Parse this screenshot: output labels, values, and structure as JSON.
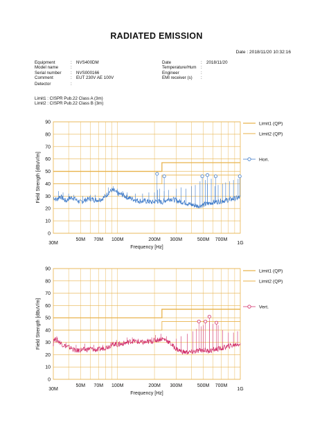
{
  "report": {
    "title": "RADIATED EMISSION",
    "date_line": "Date : 2018/11/20 10:32:16",
    "left_fields": [
      {
        "label": "Equipment",
        "value": "NVS400DM"
      },
      {
        "label": "Model name",
        "value": ""
      },
      {
        "label": "Serial number",
        "value": "NVS000166"
      },
      {
        "label": "Comment",
        "value": "EUT 230V AE 100V"
      }
    ],
    "right_fields": [
      {
        "label": "Date",
        "value": "2018/11/20"
      },
      {
        "label": "Temperature/Hum",
        "value": ""
      },
      {
        "label": "Engineer",
        "value": ""
      },
      {
        "label": "EMI receiver (s)",
        "value": ""
      }
    ],
    "detector": {
      "label": "Detector",
      "value": ""
    },
    "limit_lines": [
      "Limit1 : CISPR Pub.22 Class A (3m)",
      "Limit2 : CISPR Pub.22 Class B (3m)"
    ]
  },
  "colors": {
    "grid": "#e8b24a",
    "limit": "#e8b24a",
    "hori": "#3a78c8",
    "vert": "#d02a66"
  },
  "chart_data": [
    {
      "type": "line",
      "name": "hori",
      "xlabel": "Frequency [Hz]",
      "ylabel": "Field Strength [dBuV/m]",
      "x_scale": "log",
      "xlim": [
        30,
        1000
      ],
      "ylim": [
        0,
        90
      ],
      "x_unit": "MHz",
      "x_ticks": [
        {
          "value": 30,
          "label": "30M"
        },
        {
          "value": 50,
          "label": "50M"
        },
        {
          "value": 70,
          "label": "70M"
        },
        {
          "value": 100,
          "label": "100M"
        },
        {
          "value": 200,
          "label": "200M"
        },
        {
          "value": 300,
          "label": "300M"
        },
        {
          "value": 500,
          "label": "500M"
        },
        {
          "value": 700,
          "label": "700M"
        },
        {
          "value": 1000,
          "label": "1G"
        }
      ],
      "y_ticks": [
        0,
        10,
        20,
        30,
        40,
        50,
        60,
        70,
        80,
        90
      ],
      "legend": [
        {
          "label": "Limit1 (QP)",
          "kind": "limit"
        },
        {
          "label": "Limit2 (QP)",
          "kind": "limit"
        },
        {
          "label": "Hori.",
          "kind": "series"
        }
      ],
      "limits": [
        {
          "name": "Limit1 (QP)",
          "steps": [
            {
              "from": 30,
              "to": 230,
              "value": 50
            },
            {
              "from": 230,
              "to": 1000,
              "value": 57
            }
          ]
        },
        {
          "name": "Limit2 (QP)",
          "steps": [
            {
              "from": 30,
              "to": 230,
              "value": 40
            },
            {
              "from": 230,
              "to": 1000,
              "value": 47
            }
          ]
        }
      ],
      "series": [
        {
          "name": "Hori.",
          "baseline": [
            [
              30,
              29
            ],
            [
              32,
              27
            ],
            [
              34,
              30
            ],
            [
              36,
              28
            ],
            [
              38,
              26
            ],
            [
              40,
              28
            ],
            [
              43,
              29
            ],
            [
              46,
              27
            ],
            [
              50,
              25
            ],
            [
              55,
              27
            ],
            [
              60,
              28
            ],
            [
              65,
              27
            ],
            [
              70,
              27
            ],
            [
              75,
              28
            ],
            [
              80,
              30
            ],
            [
              85,
              33
            ],
            [
              90,
              35
            ],
            [
              95,
              34
            ],
            [
              100,
              32
            ],
            [
              110,
              31
            ],
            [
              120,
              29
            ],
            [
              130,
              28
            ],
            [
              140,
              27
            ],
            [
              150,
              26
            ],
            [
              170,
              26
            ],
            [
              190,
              25
            ],
            [
              210,
              26
            ],
            [
              230,
              25
            ],
            [
              250,
              27
            ],
            [
              270,
              28
            ],
            [
              290,
              27
            ],
            [
              310,
              26
            ],
            [
              350,
              25
            ],
            [
              400,
              23
            ],
            [
              450,
              22
            ],
            [
              500,
              23
            ],
            [
              550,
              24
            ],
            [
              600,
              25
            ],
            [
              700,
              26
            ],
            [
              800,
              27
            ],
            [
              900,
              28
            ],
            [
              1000,
              29
            ]
          ],
          "spikes": [
            [
              33,
              34
            ],
            [
              36,
              33
            ],
            [
              40,
              32
            ],
            [
              44,
              31
            ],
            [
              52,
              30
            ],
            [
              60,
              31
            ],
            [
              66,
              31
            ],
            [
              84,
              37
            ],
            [
              92,
              38
            ],
            [
              100,
              36
            ],
            [
              110,
              34
            ],
            [
              120,
              33
            ],
            [
              140,
              32
            ],
            [
              160,
              32
            ],
            [
              180,
              33
            ],
            [
              200,
              33
            ],
            [
              212,
              35
            ],
            [
              220,
              36
            ],
            [
              240,
              34
            ],
            [
              260,
              35
            ],
            [
              300,
              36
            ],
            [
              330,
              37
            ],
            [
              360,
              36
            ],
            [
              400,
              38
            ],
            [
              430,
              39
            ],
            [
              470,
              42
            ],
            [
              520,
              43
            ],
            [
              540,
              40
            ],
            [
              580,
              44
            ],
            [
              620,
              38
            ],
            [
              660,
              39
            ],
            [
              720,
              40
            ],
            [
              760,
              41
            ],
            [
              820,
              42
            ],
            [
              880,
              43
            ],
            [
              960,
              44
            ]
          ],
          "markers": [
            [
              210,
              48
            ],
            [
              240,
              46
            ],
            [
              490,
              46
            ],
            [
              540,
              47
            ],
            [
              630,
              46
            ],
            [
              990,
              46
            ]
          ]
        }
      ]
    },
    {
      "type": "line",
      "name": "vert",
      "xlabel": "Frequency [Hz]",
      "ylabel": "Field Strength [dBuV/m]",
      "x_scale": "log",
      "xlim": [
        30,
        1000
      ],
      "ylim": [
        0,
        90
      ],
      "x_unit": "MHz",
      "x_ticks": [
        {
          "value": 30,
          "label": "30M"
        },
        {
          "value": 50,
          "label": "50M"
        },
        {
          "value": 70,
          "label": "70M"
        },
        {
          "value": 100,
          "label": "100M"
        },
        {
          "value": 200,
          "label": "200M"
        },
        {
          "value": 300,
          "label": "300M"
        },
        {
          "value": 500,
          "label": "500M"
        },
        {
          "value": 700,
          "label": "700M"
        },
        {
          "value": 1000,
          "label": "1G"
        }
      ],
      "y_ticks": [
        0,
        10,
        20,
        30,
        40,
        50,
        60,
        70,
        80,
        90
      ],
      "legend": [
        {
          "label": "Limit1 (QP)",
          "kind": "limit"
        },
        {
          "label": "Limit2 (QP)",
          "kind": "limit"
        },
        {
          "label": "Vert.",
          "kind": "series"
        }
      ],
      "limits": [
        {
          "name": "Limit1 (QP)",
          "steps": [
            {
              "from": 30,
              "to": 230,
              "value": 50
            },
            {
              "from": 230,
              "to": 1000,
              "value": 57
            }
          ]
        },
        {
          "name": "Limit2 (QP)",
          "steps": [
            {
              "from": 30,
              "to": 230,
              "value": 40
            },
            {
              "from": 230,
              "to": 1000,
              "value": 47
            }
          ]
        }
      ],
      "series": [
        {
          "name": "Vert.",
          "baseline": [
            [
              30,
              33
            ],
            [
              32,
              32
            ],
            [
              34,
              30
            ],
            [
              36,
              28
            ],
            [
              38,
              27
            ],
            [
              40,
              26
            ],
            [
              43,
              25
            ],
            [
              46,
              23
            ],
            [
              50,
              24
            ],
            [
              55,
              24
            ],
            [
              60,
              25
            ],
            [
              65,
              24
            ],
            [
              70,
              24
            ],
            [
              75,
              25
            ],
            [
              80,
              26
            ],
            [
              85,
              27
            ],
            [
              90,
              28
            ],
            [
              95,
              29
            ],
            [
              100,
              28
            ],
            [
              110,
              29
            ],
            [
              120,
              30
            ],
            [
              130,
              31
            ],
            [
              140,
              31
            ],
            [
              150,
              30
            ],
            [
              170,
              30
            ],
            [
              190,
              31
            ],
            [
              210,
              32
            ],
            [
              230,
              33
            ],
            [
              250,
              32
            ],
            [
              270,
              29
            ],
            [
              290,
              26
            ],
            [
              310,
              24
            ],
            [
              350,
              22
            ],
            [
              400,
              22
            ],
            [
              450,
              23
            ],
            [
              500,
              24
            ],
            [
              550,
              23
            ],
            [
              600,
              24
            ],
            [
              700,
              25
            ],
            [
              800,
              27
            ],
            [
              900,
              28
            ],
            [
              1000,
              29
            ]
          ],
          "spikes": [
            [
              32,
              35
            ],
            [
              38,
              30
            ],
            [
              46,
              28
            ],
            [
              54,
              29
            ],
            [
              64,
              28
            ],
            [
              76,
              28
            ],
            [
              88,
              30
            ],
            [
              98,
              32
            ],
            [
              104,
              31
            ],
            [
              120,
              34
            ],
            [
              132,
              34
            ],
            [
              148,
              33
            ],
            [
              160,
              32
            ],
            [
              176,
              33
            ],
            [
              190,
              34
            ],
            [
              204,
              36
            ],
            [
              226,
              37
            ],
            [
              250,
              35
            ],
            [
              300,
              33
            ],
            [
              330,
              35
            ],
            [
              370,
              37
            ],
            [
              410,
              39
            ],
            [
              440,
              41
            ],
            [
              480,
              43
            ],
            [
              500,
              44
            ],
            [
              560,
              47
            ],
            [
              600,
              45
            ],
            [
              660,
              44
            ],
            [
              720,
              40
            ],
            [
              800,
              38
            ],
            [
              880,
              38
            ],
            [
              950,
              39
            ]
          ],
          "markers": [
            [
              460,
              47
            ],
            [
              520,
              47
            ],
            [
              560,
              51
            ],
            [
              640,
              46
            ]
          ]
        }
      ]
    }
  ]
}
